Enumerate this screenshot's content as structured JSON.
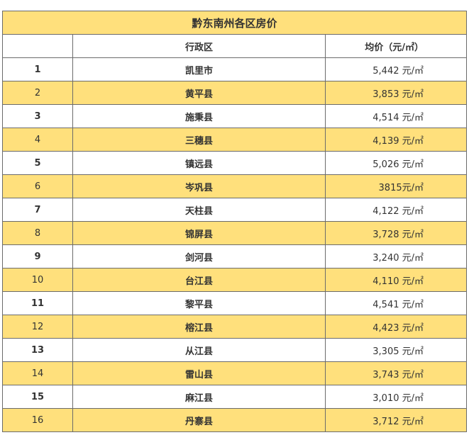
{
  "title": "黔东南州各区房价",
  "headers": {
    "index": "",
    "district": "行政区",
    "price": "均价（元/㎡）"
  },
  "highlight_color": "#ffe07c",
  "rows": [
    {
      "index": "1",
      "district": "凯里市",
      "price": "5,442 元/㎡"
    },
    {
      "index": "2",
      "district": "黄平县",
      "price": "3,853 元/㎡"
    },
    {
      "index": "3",
      "district": "施秉县",
      "price": "4,514 元/㎡"
    },
    {
      "index": "4",
      "district": "三穗县",
      "price": "4,139 元/㎡"
    },
    {
      "index": "5",
      "district": "镇远县",
      "price": "5,026 元/㎡"
    },
    {
      "index": "6",
      "district": "岑巩县",
      "price": "3815元/㎡"
    },
    {
      "index": "7",
      "district": "天柱县",
      "price": "4,122 元/㎡"
    },
    {
      "index": "8",
      "district": "锦屏县",
      "price": "3,728 元/㎡"
    },
    {
      "index": "9",
      "district": "剑河县",
      "price": "3,240 元/㎡"
    },
    {
      "index": "10",
      "district": "台江县",
      "price": "4,110 元/㎡"
    },
    {
      "index": "11",
      "district": "黎平县",
      "price": "4,541 元/㎡"
    },
    {
      "index": "12",
      "district": "榕江县",
      "price": "4,423 元/㎡"
    },
    {
      "index": "13",
      "district": "从江县",
      "price": "3,305 元/㎡"
    },
    {
      "index": "14",
      "district": "雷山县",
      "price": "3,743 元/㎡"
    },
    {
      "index": "15",
      "district": "麻江县",
      "price": "3,010 元/㎡"
    },
    {
      "index": "16",
      "district": "丹寨县",
      "price": "3,712 元/㎡"
    }
  ]
}
